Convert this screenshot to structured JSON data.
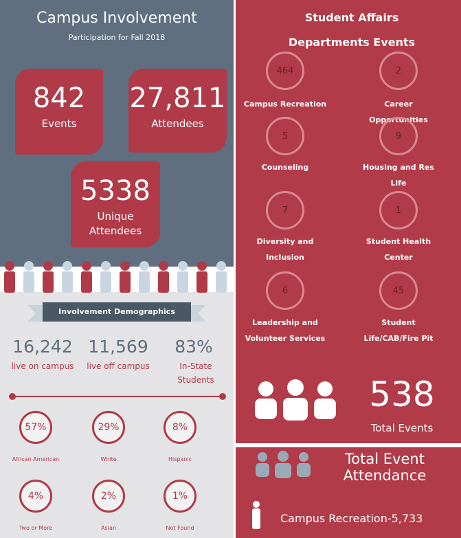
{
  "left": {
    "title": "Campus Involvement",
    "subtitle": "Participation for Fall 2018",
    "stats": [
      {
        "number": "842",
        "label": "Events"
      },
      {
        "number": "27,811",
        "label": "Attendees"
      },
      {
        "number": "5338",
        "label": "Unique Attendees"
      }
    ],
    "demographics": {
      "banner": "Involvement Demographics",
      "housing": [
        {
          "number": "16,242",
          "label": "live on campus"
        },
        {
          "number": "11,569",
          "label": "live off campus"
        },
        {
          "number": "83%",
          "label": "In-State Students"
        }
      ],
      "groups": [
        {
          "percent": "57%",
          "label": "African American"
        },
        {
          "percent": "29%",
          "label": "White"
        },
        {
          "percent": "8%",
          "label": "Hispanic"
        },
        {
          "percent": "4%",
          "label": "Two or More"
        },
        {
          "percent": "2%",
          "label": "Asian"
        },
        {
          "percent": "1%",
          "label": "Not Found"
        }
      ]
    }
  },
  "right": {
    "title": "Student Affairs Departments Events",
    "departments": [
      {
        "count": "464",
        "label": "Campus Recreation"
      },
      {
        "count": "2",
        "label": "Career Opportunities"
      },
      {
        "count": "5",
        "label": "Counseling"
      },
      {
        "count": "9",
        "label": "Housing and Res Life"
      },
      {
        "count": "7",
        "label": "Diversity and Inclusion"
      },
      {
        "count": "1",
        "label": "Student Health Center"
      },
      {
        "count": "6",
        "label": "Leadership and Volunteer Services"
      },
      {
        "count": "45",
        "label": "Student Life/CAB/Fire Pit"
      }
    ],
    "total": {
      "number": "538",
      "label": "Total Events"
    },
    "attendance": {
      "title": "Total Event Attendance",
      "items": [
        "Campus Recreation-5,733"
      ]
    }
  }
}
